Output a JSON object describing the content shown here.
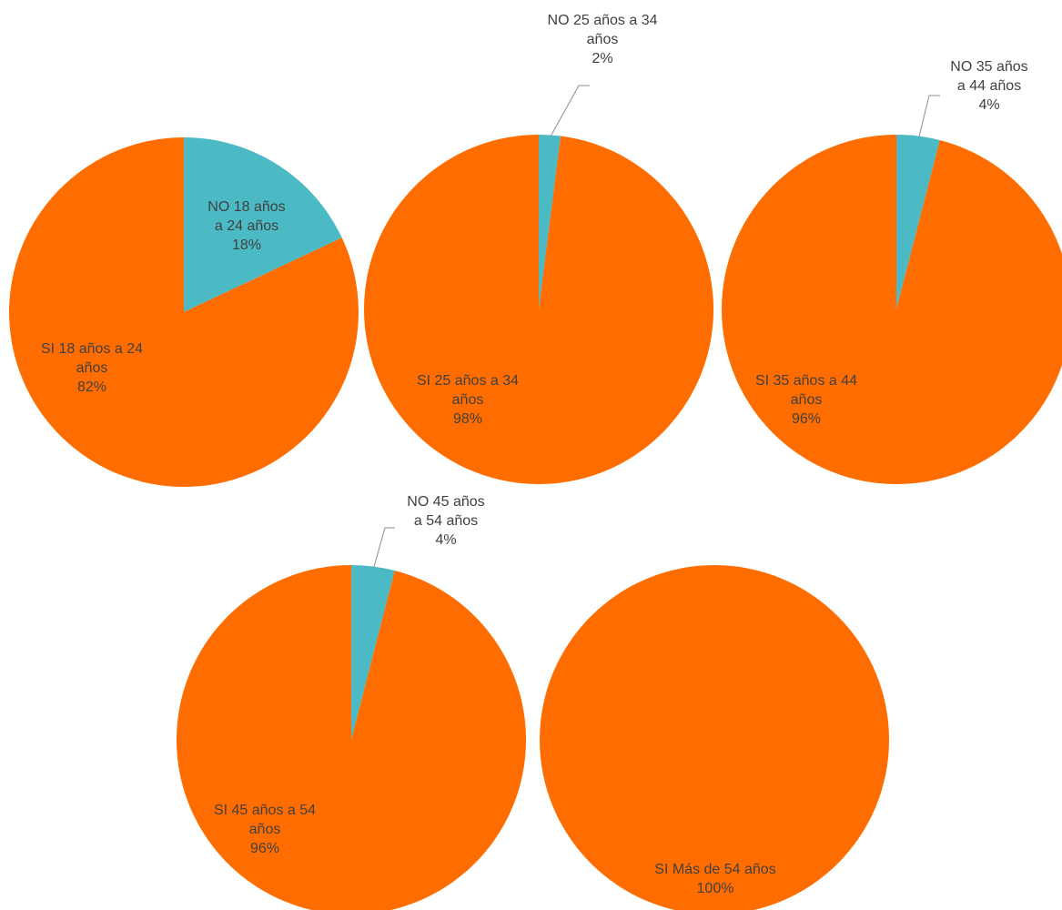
{
  "colors": {
    "si": "#FF6D00",
    "no": "#4BBAC4",
    "leader": "#8C8C8C"
  },
  "chart_data": [
    {
      "type": "pie",
      "slices": [
        {
          "name": "NO",
          "group": "18 años a 24 años",
          "value": 18,
          "label_lines": [
            "NO 18 años",
            "a 24 años",
            "18%"
          ]
        },
        {
          "name": "SI",
          "group": "18 años a 24 años",
          "value": 82,
          "label_lines": [
            "SI 18 años a 24",
            "años",
            "82%"
          ]
        }
      ]
    },
    {
      "type": "pie",
      "slices": [
        {
          "name": "NO",
          "group": "25 años a 34 años",
          "value": 2,
          "label_lines": [
            "NO 25 años a 34",
            "años",
            "2%"
          ]
        },
        {
          "name": "SI",
          "group": "25 años a 34 años",
          "value": 98,
          "label_lines": [
            "SI 25 años a 34",
            "años",
            "98%"
          ]
        }
      ]
    },
    {
      "type": "pie",
      "slices": [
        {
          "name": "NO",
          "group": "35 años a 44 años",
          "value": 4,
          "label_lines": [
            "NO 35 años",
            "a 44 años",
            "4%"
          ]
        },
        {
          "name": "SI",
          "group": "35 años a 44 años",
          "value": 96,
          "label_lines": [
            "SI 35 años a 44",
            "años",
            "96%"
          ]
        }
      ]
    },
    {
      "type": "pie",
      "slices": [
        {
          "name": "NO",
          "group": "45 años a 54 años",
          "value": 4,
          "label_lines": [
            "NO 45 años",
            "a 54 años",
            "4%"
          ]
        },
        {
          "name": "SI",
          "group": "45 años a 54 años",
          "value": 96,
          "label_lines": [
            "SI 45 años a 54",
            "años",
            "96%"
          ]
        }
      ]
    },
    {
      "type": "pie",
      "slices": [
        {
          "name": "SI",
          "group": "Más de 54 años",
          "value": 100,
          "label_lines": [
            "SI Más de 54 años",
            "100%"
          ]
        }
      ]
    }
  ]
}
